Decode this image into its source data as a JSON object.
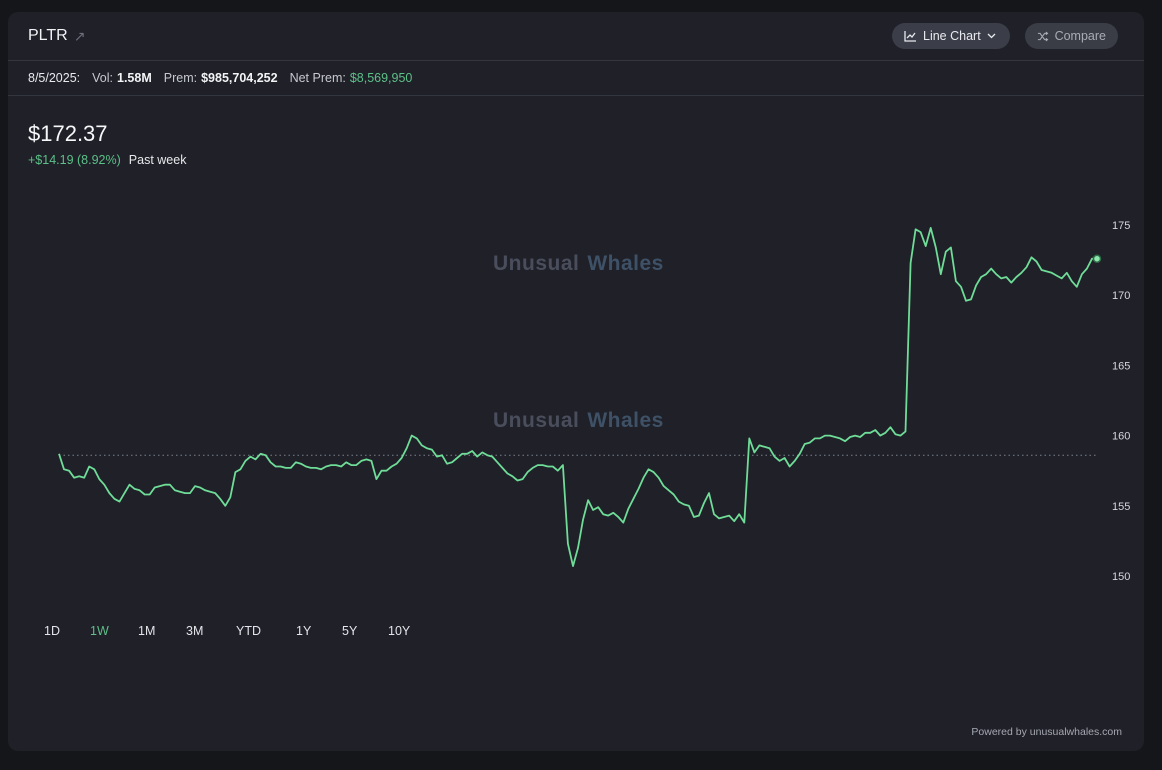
{
  "header": {
    "ticker": "PLTR",
    "chart_type_label": "Line Chart",
    "compare_label": "Compare"
  },
  "info": {
    "date": "8/5/2025:",
    "vol_label": "Vol:",
    "vol_value": "1.58M",
    "prem_label": "Prem:",
    "prem_value": "$985,704,252",
    "net_prem_label": "Net Prem:",
    "net_prem_value": "$8,569,950"
  },
  "quote": {
    "price": "$172.37",
    "change": "+$14.19 (8.92%)",
    "period": "Past week"
  },
  "watermark": {
    "part1": "Unusual",
    "part2": "Whales"
  },
  "ranges": [
    "1D",
    "1W",
    "1M",
    "3M",
    "YTD",
    "1Y",
    "5Y",
    "10Y"
  ],
  "active_range": "1W",
  "powered_by": "Powered by unusualwhales.com",
  "colors": {
    "line": "#6fdc97",
    "accent_green": "#5cc088",
    "background": "#1f2028"
  },
  "chart_data": {
    "type": "line",
    "title": "",
    "xlabel": "",
    "ylabel": "",
    "ylim": [
      148.5,
      176.5
    ],
    "yticks": [
      150,
      155,
      160,
      165,
      170,
      175
    ],
    "baseline": 158.6,
    "grid": false,
    "series": [
      {
        "name": "",
        "values": [
          158.7,
          157.6,
          157.5,
          157.0,
          157.1,
          157.0,
          157.8,
          157.6,
          156.9,
          156.5,
          155.9,
          155.5,
          155.3,
          155.9,
          156.5,
          156.2,
          156.1,
          155.8,
          155.8,
          156.3,
          156.4,
          156.5,
          156.5,
          156.1,
          156.0,
          155.9,
          155.9,
          156.4,
          156.3,
          156.1,
          156.0,
          155.9,
          155.5,
          155.0,
          155.6,
          157.4,
          157.6,
          158.2,
          158.5,
          158.3,
          158.7,
          158.6,
          158.1,
          157.8,
          157.8,
          157.7,
          157.7,
          158.1,
          158.0,
          157.8,
          157.7,
          157.7,
          157.6,
          157.8,
          157.9,
          157.9,
          157.8,
          158.1,
          157.9,
          157.9,
          158.2,
          158.3,
          158.2,
          156.9,
          157.5,
          157.5,
          157.8,
          158.0,
          158.4,
          159.1,
          160.0,
          159.8,
          159.3,
          159.1,
          159.0,
          158.5,
          158.6,
          158.0,
          158.1,
          158.4,
          158.7,
          158.7,
          158.9,
          158.5,
          158.8,
          158.6,
          158.5,
          158.1,
          157.7,
          157.3,
          157.1,
          156.8,
          156.9,
          157.4,
          157.7,
          157.9,
          157.9,
          157.8,
          157.8,
          157.5,
          157.9,
          152.3,
          150.7,
          152.0,
          154.0,
          155.4,
          154.7,
          154.9,
          154.4,
          154.3,
          154.5,
          154.2,
          153.8,
          154.8,
          155.5,
          156.2,
          157.0,
          157.6,
          157.4,
          157.0,
          156.4,
          156.1,
          155.8,
          155.3,
          155.1,
          155.0,
          154.2,
          154.3,
          155.2,
          155.9,
          154.4,
          154.1,
          154.2,
          154.3,
          153.9,
          154.4,
          153.8,
          159.8,
          158.8,
          159.3,
          159.2,
          159.1,
          158.5,
          158.2,
          158.4,
          157.8,
          158.2,
          158.7,
          159.4,
          159.5,
          159.8,
          159.8,
          160.0,
          160.0,
          159.9,
          159.8,
          159.6,
          159.9,
          160.0,
          159.9,
          160.2,
          160.2,
          160.4,
          160.0,
          160.2,
          160.6,
          160.1,
          160.0,
          160.3,
          172.3,
          174.7,
          174.5,
          173.5,
          174.8,
          173.4,
          171.5,
          173.1,
          173.4,
          171.0,
          170.6,
          169.6,
          169.7,
          170.7,
          171.3,
          171.5,
          171.9,
          171.5,
          171.2,
          171.3,
          170.9,
          171.3,
          171.6,
          172.0,
          172.7,
          172.4,
          171.8,
          171.7,
          171.6,
          171.4,
          171.2,
          171.6,
          171.0,
          170.6,
          171.5,
          171.9,
          172.6,
          172.6
        ]
      }
    ]
  }
}
